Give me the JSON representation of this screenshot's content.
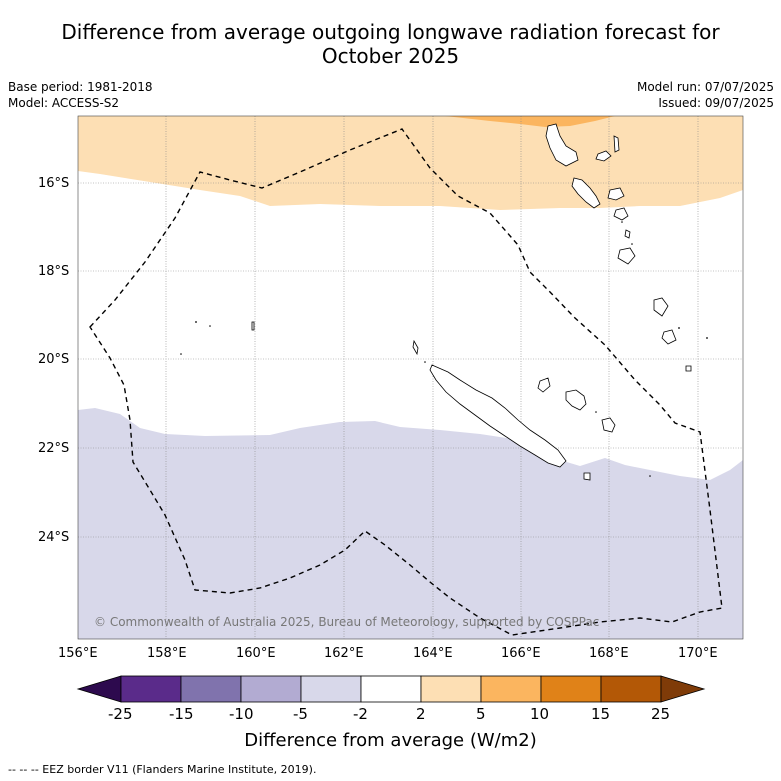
{
  "title_line1": "Difference from average outgoing longwave radiation forecast for",
  "title_line2": "October 2025",
  "base_period": "Base period: 1981-2018",
  "model": "Model: ACCESS-S2",
  "model_run": "Model run: 07/07/2025",
  "issued": "Issued: 09/07/2025",
  "lat_labels": [
    "16°S",
    "18°S",
    "20°S",
    "22°S",
    "24°S"
  ],
  "lon_labels": [
    "156°E",
    "158°E",
    "160°E",
    "162°E",
    "164°E",
    "166°E",
    "168°E",
    "170°E"
  ],
  "copyright": "© Commonwealth of Australia 2025, Bureau of Meteorology, supported by COSPPac",
  "colorbar": {
    "ticks": [
      "-25",
      "-15",
      "-10",
      "-5",
      "-2",
      "2",
      "5",
      "10",
      "15",
      "25"
    ],
    "colors": [
      "#2d0a4e",
      "#5a2b8a",
      "#8073ad",
      "#b2abd2",
      "#d8d8ea",
      "#ffffff",
      "#fddfb4",
      "#fbb55f",
      "#e08218",
      "#b35806",
      "#7f3b08"
    ],
    "title": "Difference from average (W/m2)"
  },
  "footnote": "--  --  -- EEZ border V11 (Flanders Marine Institute, 2019)."
}
